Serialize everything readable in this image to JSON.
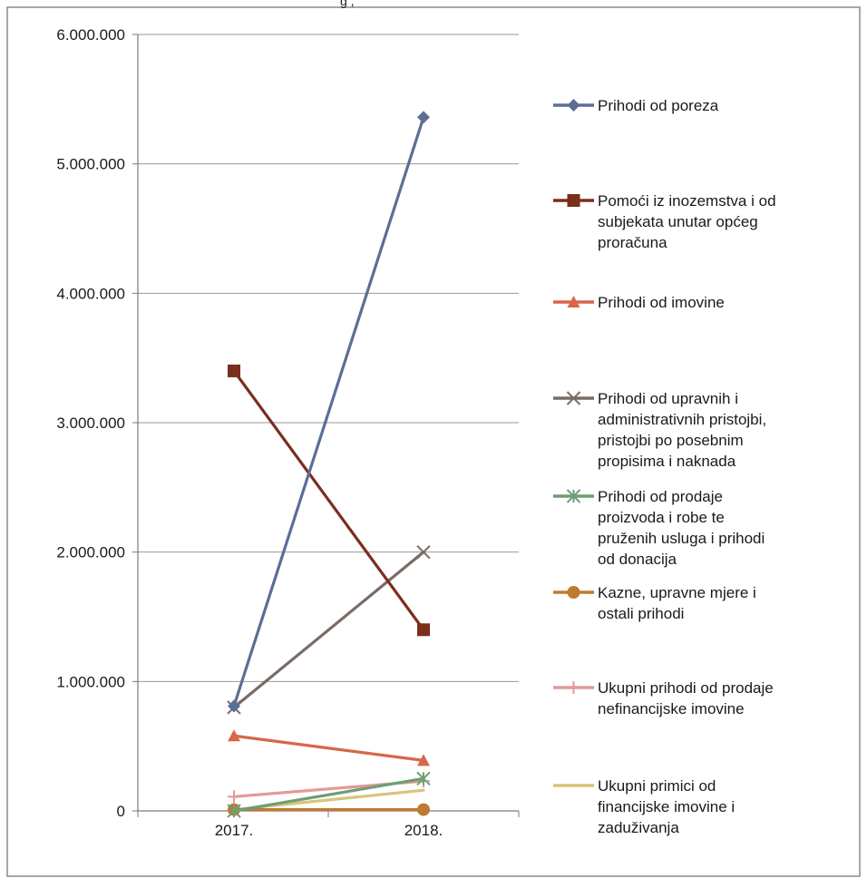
{
  "top_fragment": "g ,",
  "chart_data": {
    "type": "line",
    "title": "",
    "xlabel": "",
    "ylabel": "",
    "categories": [
      "2017.",
      "2018."
    ],
    "ylim": [
      0,
      6000000
    ],
    "yticks": [
      0,
      1000000,
      2000000,
      3000000,
      4000000,
      5000000,
      6000000
    ],
    "ytick_labels": [
      "0",
      "1.000.000",
      "2.000.000",
      "3.000.000",
      "4.000.000",
      "5.000.000",
      "6.000.000"
    ],
    "grid": true,
    "legend_position": "right",
    "series": [
      {
        "name": "Prihodi od poreza",
        "values": [
          810000,
          5360000
        ],
        "color": "#5b6e96",
        "marker": "diamond"
      },
      {
        "name": "Pomoći iz inozemstva i od subjekata unutar općeg proračuna",
        "values": [
          3400000,
          1400000
        ],
        "color": "#7a2e1c",
        "marker": "square"
      },
      {
        "name": "Prihodi od imovine",
        "values": [
          580000,
          390000
        ],
        "color": "#d8664a",
        "marker": "triangle"
      },
      {
        "name": "Prihodi od upravnih i administrativnih pristojbi, pristojbi po posebnim propisima i naknada",
        "values": [
          800000,
          2000000
        ],
        "color": "#7a6b66",
        "marker": "x"
      },
      {
        "name": "Prihodi od prodaje proizvoda i robe te pruženih usluga i prihodi od donacija",
        "values": [
          0,
          250000
        ],
        "color": "#6e9e74",
        "marker": "star"
      },
      {
        "name": "Kazne, upravne mjere i ostali prihodi",
        "values": [
          10000,
          10000
        ],
        "color": "#c07a30",
        "marker": "circle"
      },
      {
        "name": "Ukupni prihodi od prodaje nefinancijske imovine",
        "values": [
          110000,
          230000
        ],
        "color": "#e39a98",
        "marker": "plus"
      },
      {
        "name": "Ukupni primici od financijske imovine i zaduživanja",
        "values": [
          10000,
          160000
        ],
        "color": "#d9c47a",
        "marker": "none"
      }
    ]
  }
}
